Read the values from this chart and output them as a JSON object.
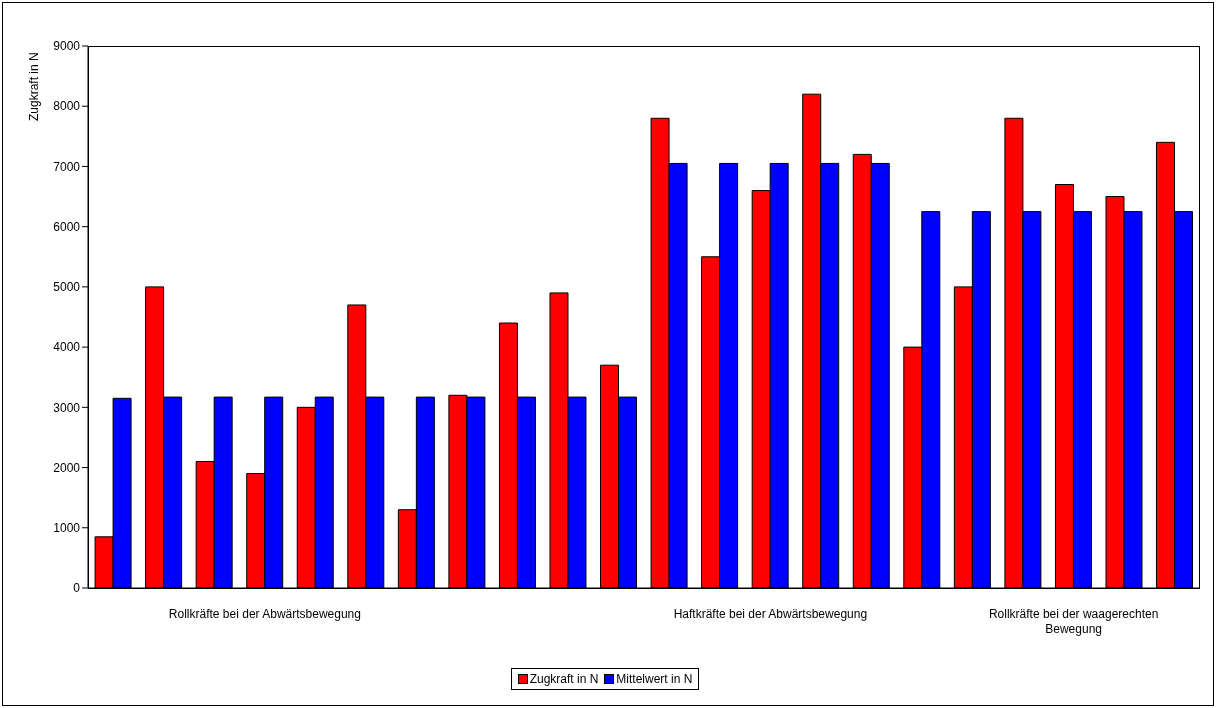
{
  "chart_data": {
    "type": "bar",
    "ylabel": "Zugkraft in N",
    "categories": [
      null,
      null,
      null,
      "Rollkräfte bei der Abwärtsbewegung",
      null,
      null,
      null,
      null,
      null,
      null,
      null,
      null,
      null,
      "Haftkräfte bei der Abwärtsbewegung",
      null,
      null,
      null,
      null,
      null,
      "Rollkräfte bei der waagerechten Bewegung",
      null,
      null
    ],
    "series": [
      {
        "name": "Zugkraft in N",
        "color": "#ff0000",
        "values": [
          850,
          5000,
          2100,
          1900,
          3000,
          4700,
          1300,
          3200,
          4400,
          4900,
          3700,
          7800,
          5500,
          6600,
          8200,
          7200,
          4000,
          5000,
          7800,
          6700,
          6500,
          7400
        ]
      },
      {
        "name": "Mittelwert in N",
        "color": "#0000ff",
        "values": [
          3150,
          3170,
          3170,
          3170,
          3170,
          3170,
          3170,
          3170,
          3170,
          3170,
          3170,
          7050,
          7050,
          7050,
          7050,
          7050,
          6250,
          6250,
          6250,
          6250,
          6250,
          6250
        ]
      }
    ],
    "ylim": [
      0,
      9000
    ],
    "yticks": [
      0,
      1000,
      2000,
      3000,
      4000,
      5000,
      6000,
      7000,
      8000,
      9000
    ],
    "grid": false,
    "legend": "bottom"
  }
}
